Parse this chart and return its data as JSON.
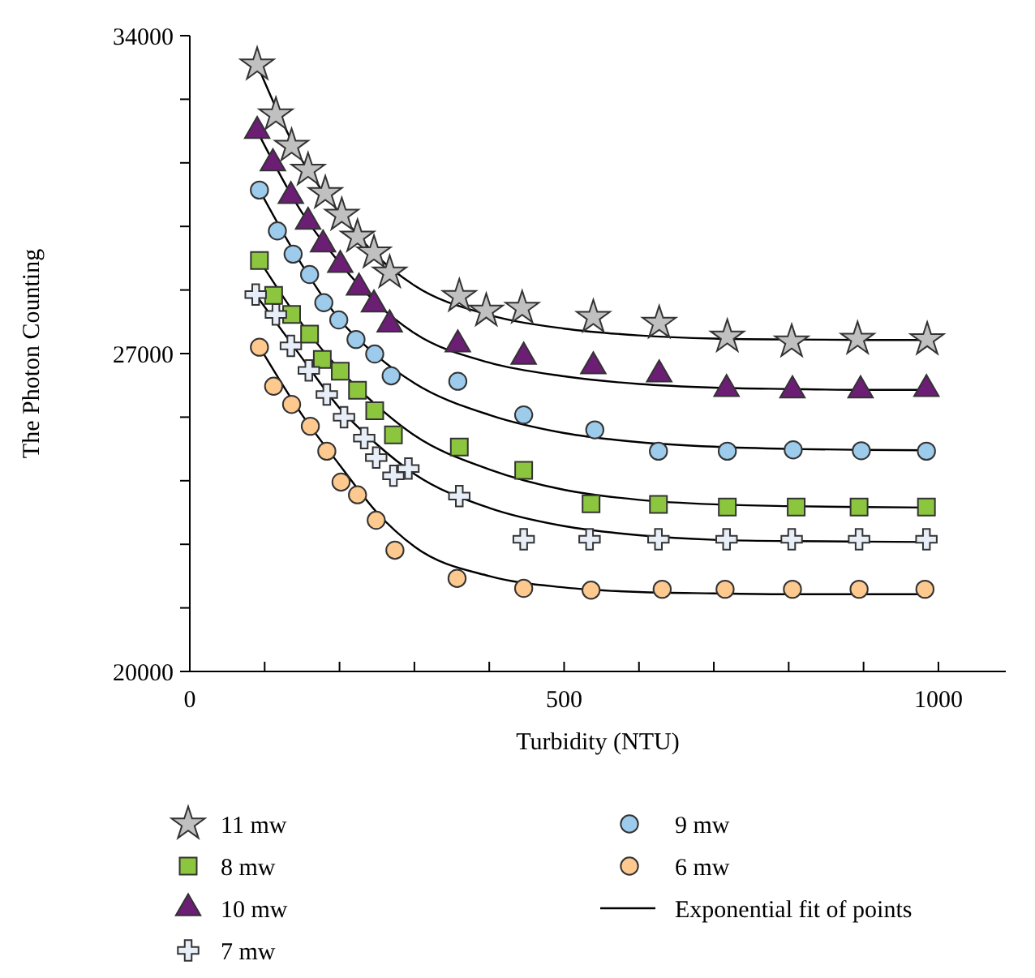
{
  "chart_data": {
    "type": "scatter",
    "xlabel": "Turbidity (NTU)",
    "ylabel": "The Photon Counting",
    "xlim": [
      0,
      1090
    ],
    "ylim": [
      20000,
      34000
    ],
    "xticks": [
      0,
      {
        "value": 100,
        "label": null
      },
      {
        "value": 200,
        "label": null
      },
      {
        "value": 300,
        "label": null
      },
      {
        "value": 400,
        "label": null
      },
      500,
      {
        "value": 600,
        "label": null
      },
      {
        "value": 700,
        "label": null
      },
      {
        "value": 800,
        "label": null
      },
      {
        "value": 900,
        "label": null
      },
      1000
    ],
    "yticks": [
      20000,
      {
        "value": 21400,
        "label": null
      },
      {
        "value": 22800,
        "label": null
      },
      {
        "value": 24200,
        "label": null
      },
      {
        "value": 25600,
        "label": null
      },
      27000,
      {
        "value": 28400,
        "label": null
      },
      {
        "value": 29800,
        "label": null
      },
      {
        "value": 31200,
        "label": null
      },
      {
        "value": 32600,
        "label": null
      },
      34000
    ],
    "legend": "bottom",
    "grid": false,
    "series": [
      {
        "name": "11 mw",
        "marker": "star",
        "color": "#c0c0c0",
        "x": [
          90,
          115,
          136,
          158,
          181,
          203,
          224,
          246,
          267,
          360,
          396,
          444,
          539,
          627,
          718,
          804,
          892,
          985
        ],
        "values": [
          33360,
          32260,
          31570,
          31040,
          30530,
          30050,
          29570,
          29220,
          28780,
          28260,
          27940,
          28000,
          27800,
          27670,
          27370,
          27260,
          27320,
          27310
        ]
      },
      {
        "name": "8 mw",
        "marker": "square",
        "color": "#8cc63f",
        "x": [
          93,
          112,
          136,
          160,
          177,
          201,
          224,
          247,
          272,
          360,
          446,
          536,
          626,
          718,
          810,
          894,
          984
        ],
        "values": [
          29050,
          28280,
          27860,
          27430,
          26870,
          26610,
          26190,
          25740,
          25210,
          24940,
          24430,
          23690,
          23680,
          23620,
          23620,
          23620,
          23620
        ]
      },
      {
        "name": "10 mw",
        "marker": "triangle",
        "color": "#6b1e74",
        "x": [
          90,
          111,
          135,
          158,
          178,
          201,
          226,
          246,
          267,
          358,
          446,
          539,
          627,
          717,
          805,
          896,
          984
        ],
        "values": [
          31900,
          31190,
          30470,
          29900,
          29400,
          28950,
          28450,
          28080,
          27640,
          27200,
          26930,
          26720,
          26540,
          26220,
          26190,
          26190,
          26220
        ]
      },
      {
        "name": "7 mw",
        "marker": "cross",
        "color": "#e8eef8",
        "x": [
          88,
          115,
          135,
          159,
          183,
          206,
          233,
          249,
          272,
          292,
          360,
          446,
          534,
          626,
          717,
          804,
          894,
          984
        ],
        "values": [
          28300,
          27860,
          27170,
          26630,
          26100,
          25600,
          25140,
          24710,
          24310,
          24470,
          23860,
          22910,
          22910,
          22910,
          22910,
          22910,
          22910,
          22910
        ]
      },
      {
        "name": "9 mw",
        "marker": "circle",
        "color": "#9dcbeb",
        "x": [
          93,
          117,
          138,
          160,
          179,
          199,
          222,
          247,
          269,
          358,
          446,
          541,
          626,
          718,
          806,
          897,
          984
        ],
        "values": [
          30600,
          29700,
          29190,
          28740,
          28120,
          27740,
          27310,
          26990,
          26510,
          26390,
          25650,
          25320,
          24850,
          24850,
          24880,
          24860,
          24850
        ]
      },
      {
        "name": "6 mw",
        "marker": "circle",
        "color": "#fdc98f",
        "x": [
          93,
          112,
          136,
          161,
          183,
          202,
          224,
          249,
          274,
          357,
          446,
          536,
          631,
          715,
          805,
          894,
          982
        ],
        "values": [
          27140,
          26280,
          25880,
          25400,
          24850,
          24170,
          23890,
          23330,
          22670,
          22050,
          21830,
          21790,
          21810,
          21810,
          21810,
          21810,
          21810
        ]
      },
      {
        "name": "Exponential fit of points",
        "type": "line",
        "marker": "none",
        "color": "#000000",
        "x": [
          90,
          150,
          200,
          250,
          300,
          400,
          500,
          600,
          700,
          800,
          900,
          985
        ],
        "values": [
          33360,
          31250,
          30100,
          29150,
          28500,
          27850,
          27550,
          27400,
          27330,
          27310,
          27300,
          27300
        ]
      },
      {
        "type": "line",
        "marker": "none",
        "color": "#000000",
        "x": [
          90,
          150,
          200,
          250,
          300,
          400,
          500,
          600,
          700,
          800,
          900,
          985
        ],
        "values": [
          31900,
          30100,
          29000,
          28100,
          27450,
          26800,
          26500,
          26330,
          26250,
          26220,
          26200,
          26200
        ]
      },
      {
        "type": "line",
        "marker": "none",
        "color": "#000000",
        "x": [
          93,
          150,
          200,
          250,
          300,
          400,
          500,
          600,
          700,
          800,
          900,
          985
        ],
        "values": [
          30600,
          28950,
          27750,
          26950,
          26350,
          25650,
          25250,
          25050,
          24950,
          24900,
          24880,
          24870
        ]
      },
      {
        "type": "line",
        "marker": "none",
        "color": "#000000",
        "x": [
          93,
          150,
          200,
          250,
          300,
          400,
          500,
          600,
          700,
          800,
          900,
          985
        ],
        "values": [
          29050,
          27650,
          26650,
          25850,
          25200,
          24450,
          24000,
          23780,
          23680,
          23640,
          23620,
          23610
        ]
      },
      {
        "type": "line",
        "marker": "none",
        "color": "#000000",
        "x": [
          88,
          150,
          200,
          250,
          300,
          400,
          500,
          600,
          700,
          800,
          900,
          985
        ],
        "values": [
          28300,
          26900,
          25800,
          25000,
          24350,
          23600,
          23200,
          23000,
          22900,
          22870,
          22860,
          22850
        ]
      },
      {
        "type": "line",
        "marker": "none",
        "color": "#000000",
        "x": [
          93,
          150,
          200,
          250,
          300,
          400,
          500,
          600,
          700,
          800,
          900,
          985
        ],
        "values": [
          27150,
          25650,
          24550,
          23500,
          22750,
          22100,
          21850,
          21750,
          21720,
          21700,
          21700,
          21700
        ]
      }
    ]
  }
}
